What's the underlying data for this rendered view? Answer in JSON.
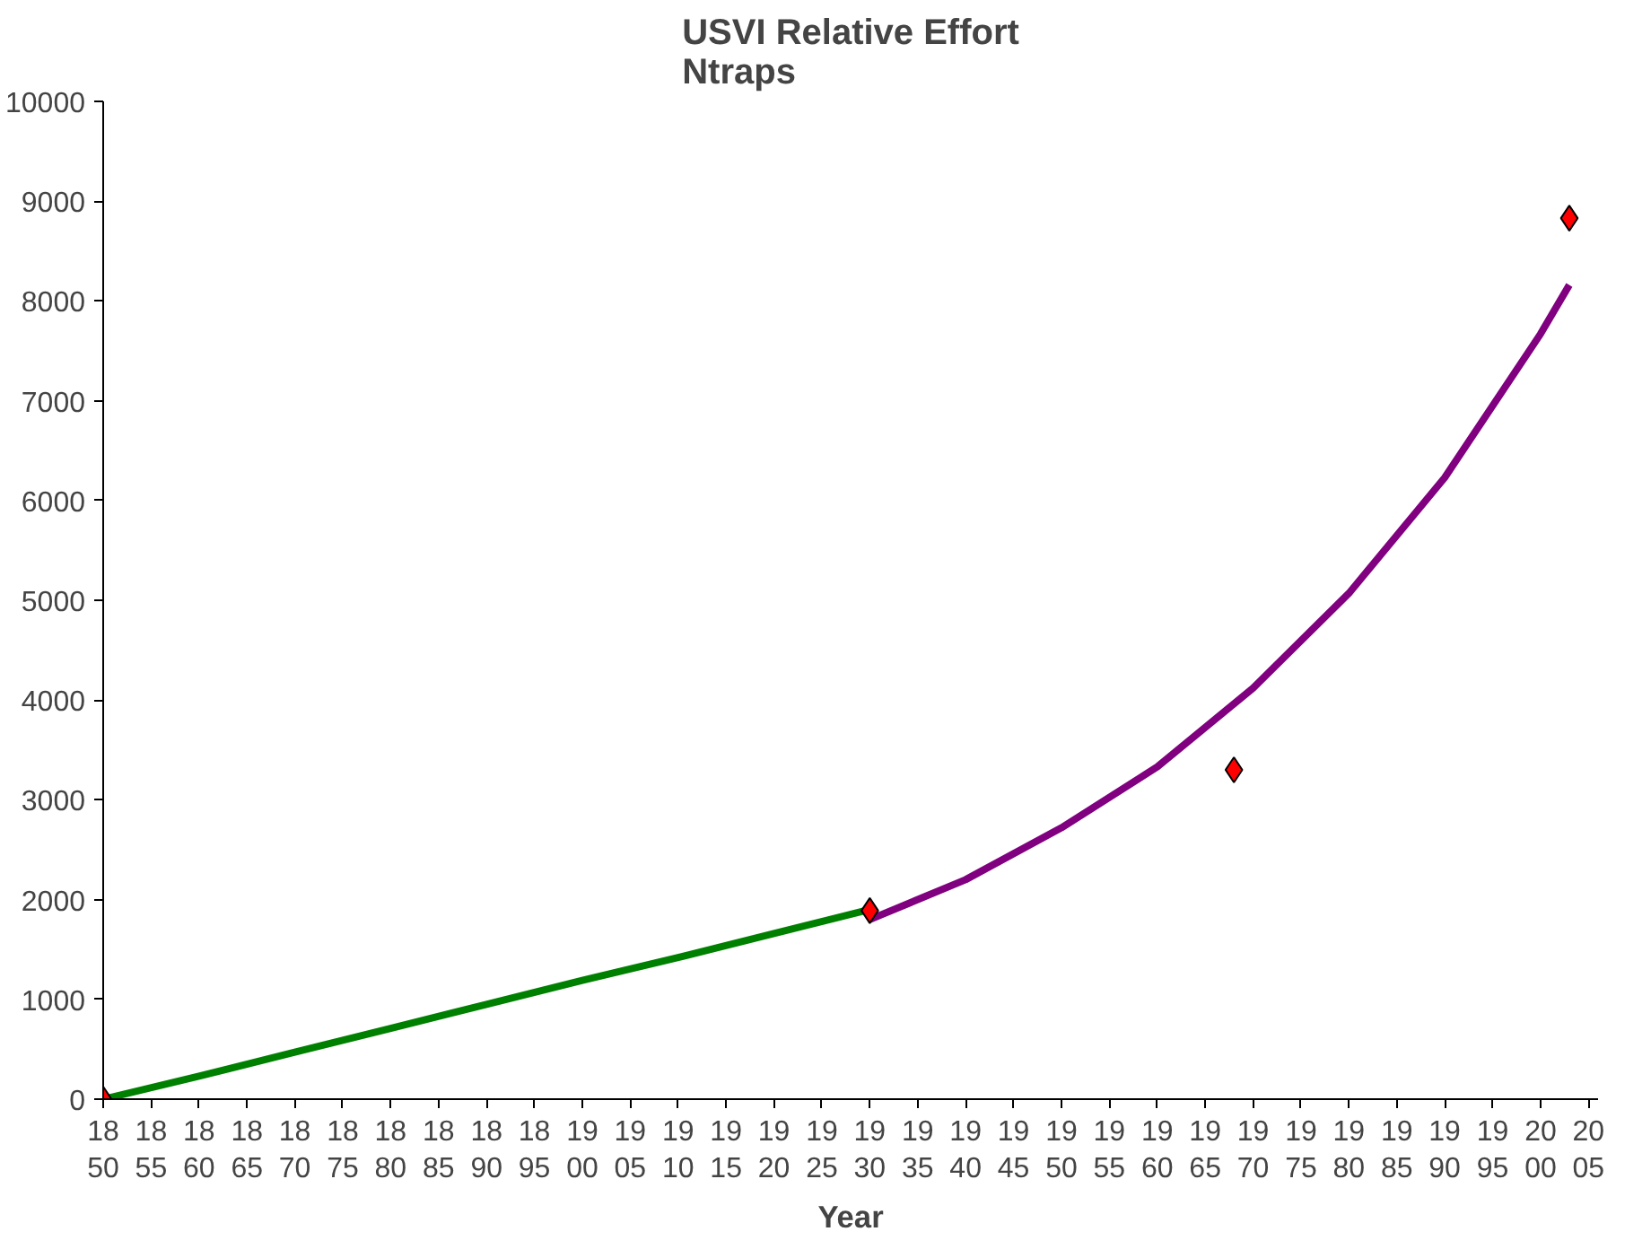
{
  "chart_data": {
    "type": "line",
    "title": "USVI Relative Effort\nNtraps",
    "xlabel": "Year",
    "xlim": [
      1850,
      2006
    ],
    "ylim": [
      0,
      10000
    ],
    "xticks": [
      1850,
      1855,
      1860,
      1865,
      1870,
      1875,
      1880,
      1885,
      1890,
      1895,
      1900,
      1905,
      1910,
      1915,
      1920,
      1925,
      1930,
      1935,
      1940,
      1945,
      1950,
      1955,
      1960,
      1965,
      1970,
      1975,
      1980,
      1985,
      1990,
      1995,
      2000,
      2005
    ],
    "yticks": [
      0,
      1000,
      2000,
      3000,
      4000,
      5000,
      6000,
      7000,
      8000,
      9000,
      10000
    ],
    "grid": false,
    "line_style": "solid",
    "series": [
      {
        "color": "#008000",
        "x": [
          1850,
          1860,
          1870,
          1880,
          1890,
          1900,
          1910,
          1920,
          1930
        ],
        "values": [
          0,
          230,
          470,
          710,
          950,
          1190,
          1420,
          1660,
          1900
        ]
      },
      {
        "color": "#800080",
        "x": [
          1930,
          1940,
          1950,
          1960,
          1970,
          1980,
          1990,
          2000,
          2003
        ],
        "values": [
          1800,
          2200,
          2720,
          3330,
          4120,
          5070,
          6230,
          7670,
          8160
        ]
      },
      {
        "type": "scatter",
        "color": "#ff0000",
        "marker": "diamond",
        "x": [
          1850,
          1930,
          1968,
          2003
        ],
        "values": [
          0,
          1890,
          3300,
          8830
        ]
      }
    ]
  }
}
